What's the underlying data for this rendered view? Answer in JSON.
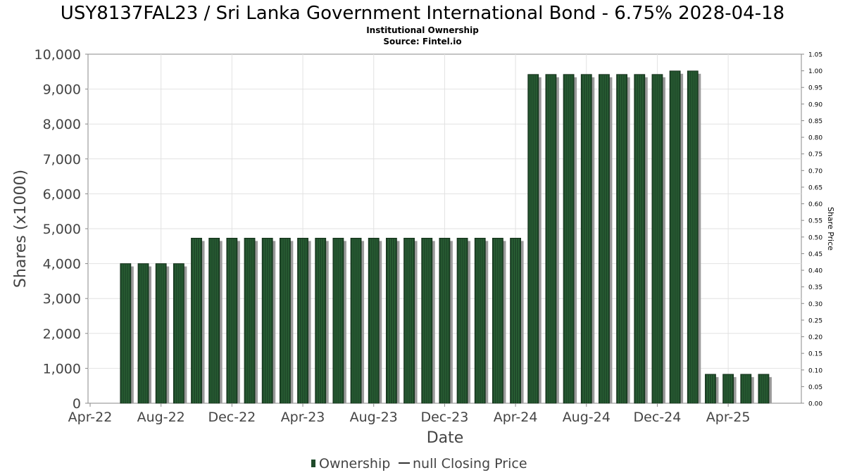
{
  "title": "USY8137FAL23 / Sri Lanka Government International Bond - 6.75% 2028-04-18",
  "subtitle": "Institutional Ownership",
  "source": "Source: Fintel.io",
  "chart_data": {
    "type": "bar",
    "xlabel": "Date",
    "ylabel": "Shares (x1000)",
    "y2label": "Share Price",
    "ylim": [
      0,
      10000
    ],
    "y2lim": [
      0,
      1.05
    ],
    "yticks": [
      "0",
      "1,000",
      "2,000",
      "3,000",
      "4,000",
      "5,000",
      "6,000",
      "7,000",
      "8,000",
      "9,000",
      "10,000"
    ],
    "y2ticks": [
      "0.00",
      "0.05",
      "0.10",
      "0.15",
      "0.20",
      "0.25",
      "0.30",
      "0.35",
      "0.40",
      "0.45",
      "0.50",
      "0.55",
      "0.60",
      "0.65",
      "0.70",
      "0.75",
      "0.80",
      "0.85",
      "0.90",
      "0.95",
      "1.00",
      "1.05"
    ],
    "xticks": [
      "Apr-22",
      "Aug-22",
      "Dec-22",
      "Apr-23",
      "Aug-23",
      "Dec-23",
      "Apr-24",
      "Aug-24",
      "Dec-24",
      "Apr-25"
    ],
    "x_start": "2022-04",
    "grid": true,
    "legend_position": "bottom",
    "series": [
      {
        "name": "Ownership",
        "color": "#1f4a2a",
        "x": [
          "2022-06",
          "2022-07",
          "2022-08",
          "2022-09",
          "2022-10",
          "2022-11",
          "2022-12",
          "2023-01",
          "2023-02",
          "2023-03",
          "2023-04",
          "2023-05",
          "2023-06",
          "2023-07",
          "2023-08",
          "2023-09",
          "2023-10",
          "2023-11",
          "2023-12",
          "2024-01",
          "2024-02",
          "2024-03",
          "2024-04",
          "2024-05",
          "2024-06",
          "2024-07",
          "2024-08",
          "2024-09",
          "2024-10",
          "2024-11",
          "2024-12",
          "2025-01",
          "2025-02",
          "2025-03",
          "2025-04",
          "2025-05",
          "2025-06"
        ],
        "values": [
          4000,
          4000,
          4000,
          4000,
          4730,
          4730,
          4730,
          4730,
          4730,
          4730,
          4730,
          4730,
          4730,
          4730,
          4730,
          4730,
          4730,
          4730,
          4730,
          4730,
          4730,
          4730,
          4730,
          9420,
          9420,
          9420,
          9420,
          9420,
          9420,
          9420,
          9420,
          9520,
          9520,
          830,
          830,
          830,
          830
        ]
      },
      {
        "name": "null Closing Price",
        "color": "#333333",
        "values": []
      }
    ]
  }
}
